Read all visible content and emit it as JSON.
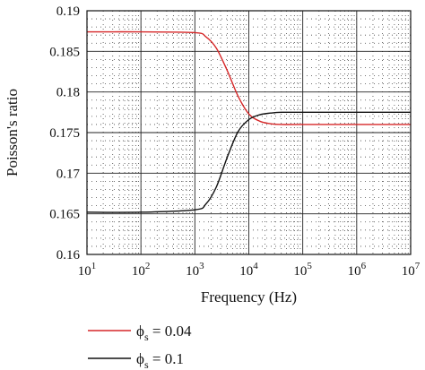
{
  "chart_data": {
    "type": "line",
    "title": "",
    "xlabel": "Frequency (Hz)",
    "ylabel": "Poisson's ratio",
    "xscale": "log",
    "xlim": [
      10,
      10000000
    ],
    "ylim": [
      0.16,
      0.19
    ],
    "grid": true,
    "legend_position": "bottom-left, below plot",
    "x_tick_labels": [
      {
        "base": "10",
        "exp": "1"
      },
      {
        "base": "10",
        "exp": "2"
      },
      {
        "base": "10",
        "exp": "3"
      },
      {
        "base": "10",
        "exp": "4"
      },
      {
        "base": "10",
        "exp": "5"
      },
      {
        "base": "10",
        "exp": "6"
      },
      {
        "base": "10",
        "exp": "7"
      }
    ],
    "y_tick_labels": [
      "0.16",
      "0.165",
      "0.17",
      "0.175",
      "0.18",
      "0.185",
      "0.19"
    ],
    "series": [
      {
        "name": "ϕs = 0.04",
        "legend": {
          "symbol": "ϕ",
          "sub": "s",
          "rest": " = 0.04"
        },
        "color": "#d62728",
        "x": [
          10,
          100,
          1000,
          1600,
          2500,
          4000,
          6300,
          10000,
          16000,
          25000,
          40000,
          100000,
          10000000
        ],
        "y": [
          0.1874,
          0.1874,
          0.1873,
          0.1868,
          0.1854,
          0.1826,
          0.1795,
          0.1773,
          0.1764,
          0.1761,
          0.176,
          0.176,
          0.176
        ]
      },
      {
        "name": "ϕs = 0.1",
        "legend": {
          "symbol": "ϕ",
          "sub": "s",
          "rest": " = 0.1"
        },
        "color": "#111111",
        "x": [
          10,
          100,
          1000,
          1600,
          2500,
          4000,
          6300,
          10000,
          16000,
          25000,
          40000,
          100000,
          10000000
        ],
        "y": [
          0.1652,
          0.1652,
          0.1655,
          0.1662,
          0.1683,
          0.172,
          0.1751,
          0.1766,
          0.1772,
          0.1774,
          0.1775,
          0.1775,
          0.1775
        ]
      }
    ]
  }
}
